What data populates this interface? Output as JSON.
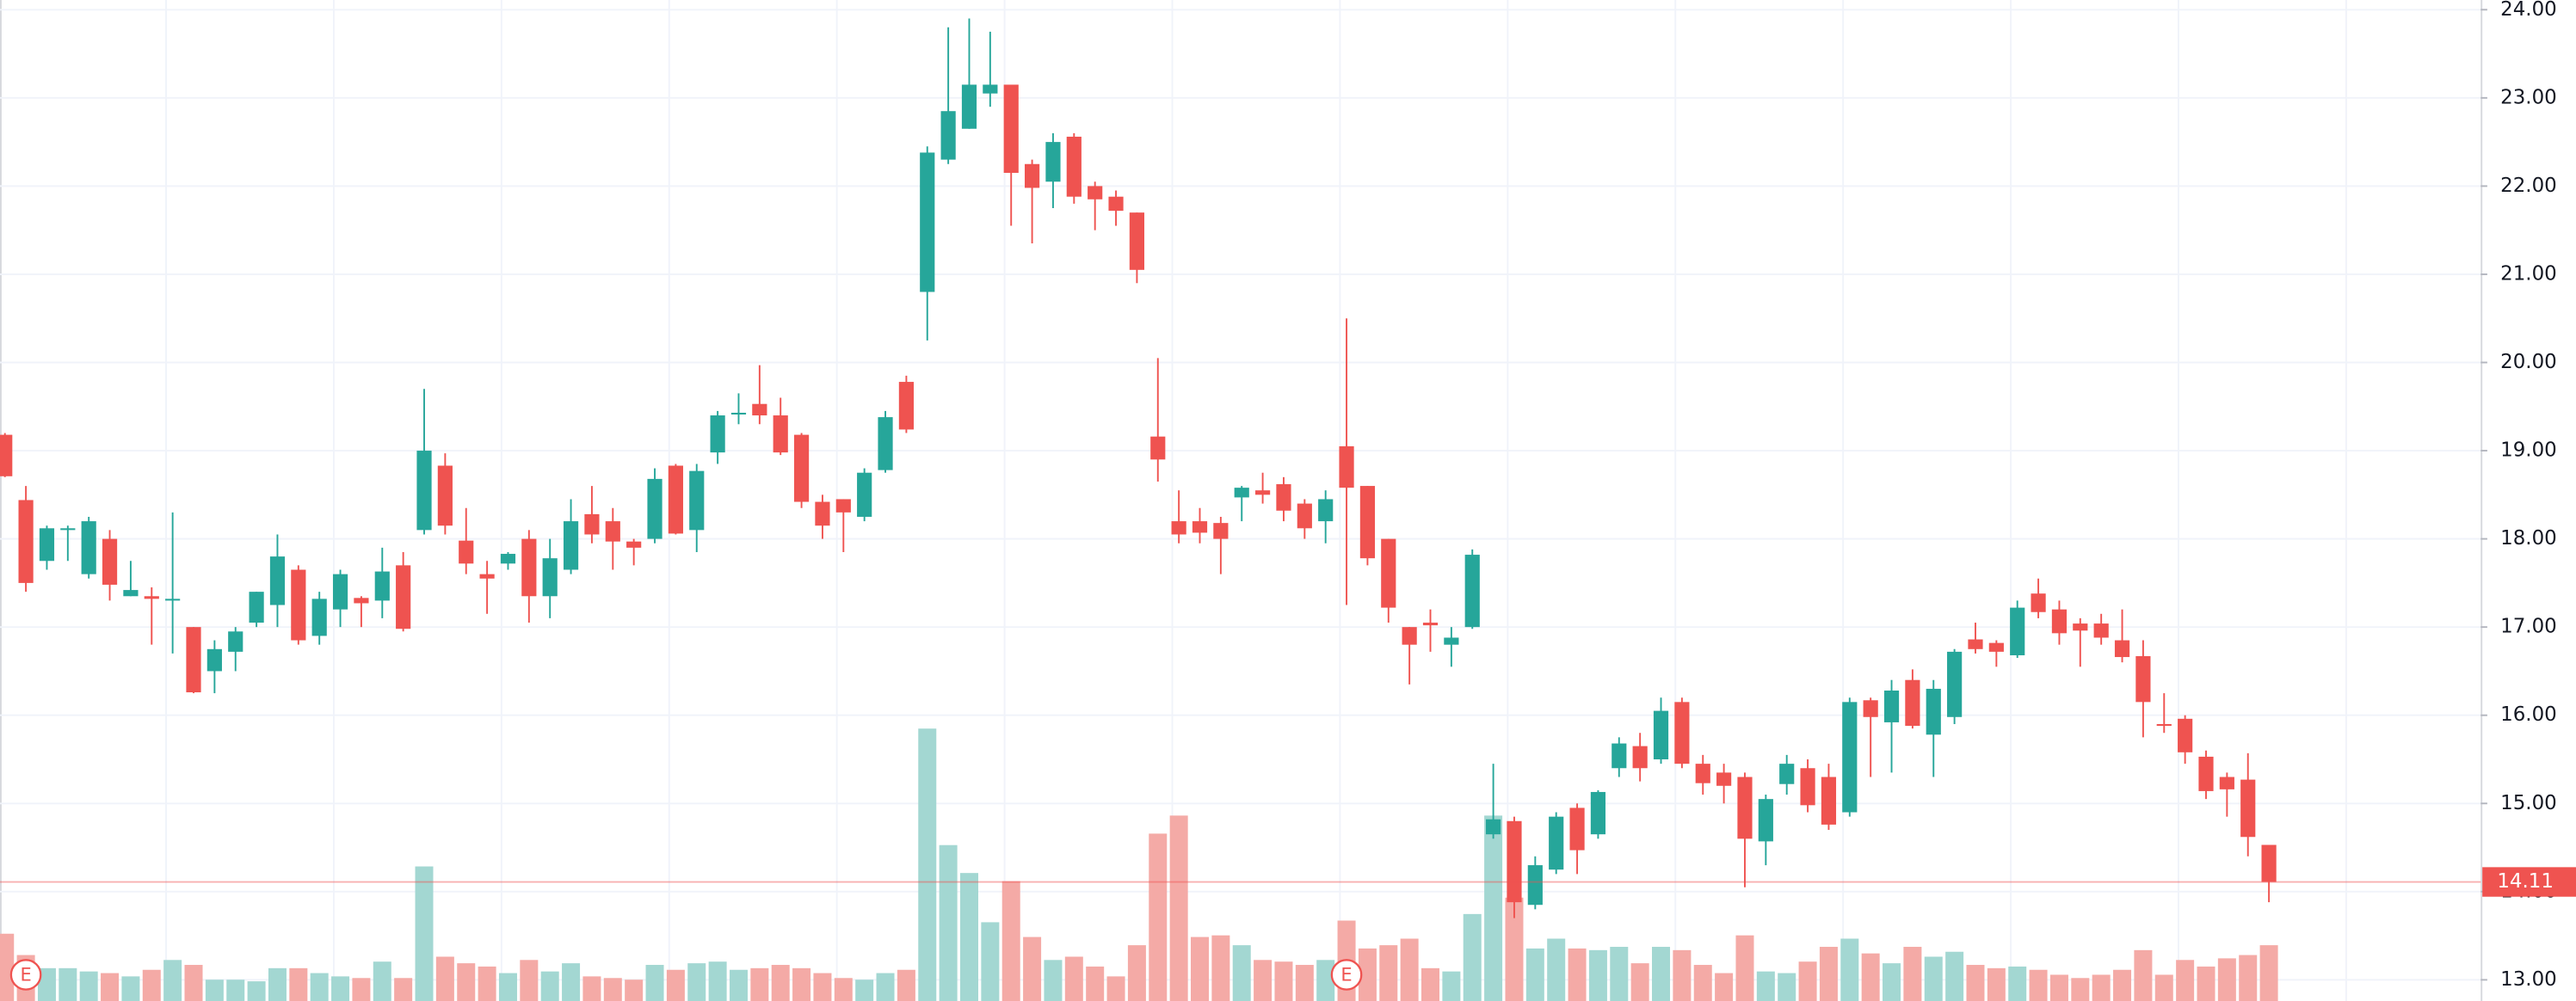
{
  "chart_data": {
    "type": "candlestick",
    "open": [
      19.18,
      18.44,
      17.75,
      18.1,
      17.6,
      18.0,
      17.35,
      17.35,
      17.3,
      17.0,
      16.5,
      16.72,
      17.05,
      17.25,
      17.65,
      16.9,
      17.2,
      17.33,
      17.3,
      17.7,
      18.1,
      18.83,
      17.98,
      17.6,
      17.72,
      18.0,
      17.35,
      17.65,
      18.28,
      18.2,
      17.97,
      18.0,
      18.83,
      18.1,
      18.98,
      19.41,
      19.53,
      19.4,
      19.18,
      18.42,
      18.45,
      18.25,
      18.78,
      19.78,
      20.8,
      22.3,
      22.65,
      23.05,
      23.15,
      22.25,
      22.05,
      22.56,
      22.0,
      21.88,
      21.7,
      19.16,
      18.2,
      18.2,
      18.18,
      18.47,
      18.55,
      18.62,
      18.4,
      18.2,
      19.05,
      18.6,
      18.0,
      17.0,
      17.05,
      16.8,
      17.0,
      14.65,
      14.8,
      13.85,
      14.25,
      14.95,
      14.65,
      15.4,
      15.65,
      15.5,
      16.15,
      15.45,
      15.35,
      15.3,
      14.57,
      15.22,
      15.4,
      15.3,
      14.9,
      16.17,
      15.92,
      16.4,
      15.78,
      15.98,
      16.86,
      16.82,
      16.68,
      17.38,
      17.2,
      17.04,
      17.04,
      16.85,
      16.67,
      15.9,
      15.96,
      15.53,
      15.3,
      15.27,
      14.53
    ],
    "high": [
      19.2,
      18.6,
      18.15,
      18.15,
      18.25,
      18.1,
      17.75,
      17.45,
      18.3,
      17.0,
      16.85,
      17.0,
      17.4,
      18.05,
      17.7,
      17.4,
      17.65,
      17.35,
      17.9,
      17.85,
      19.7,
      18.97,
      18.35,
      17.75,
      17.85,
      18.1,
      18.0,
      18.45,
      18.6,
      18.35,
      18.0,
      18.8,
      18.85,
      18.85,
      19.45,
      19.65,
      19.97,
      19.6,
      19.2,
      18.5,
      18.45,
      18.8,
      19.45,
      19.85,
      22.45,
      23.8,
      23.9,
      23.75,
      23.15,
      22.3,
      22.6,
      22.6,
      22.05,
      21.95,
      21.7,
      20.05,
      18.55,
      18.35,
      18.25,
      18.6,
      18.75,
      18.7,
      18.45,
      18.55,
      20.5,
      18.6,
      18.0,
      17.0,
      17.2,
      17.0,
      17.88,
      15.45,
      14.85,
      14.4,
      14.9,
      15.0,
      15.15,
      15.75,
      15.8,
      16.2,
      16.2,
      15.55,
      15.45,
      15.35,
      15.1,
      15.55,
      15.5,
      15.45,
      16.2,
      16.2,
      16.4,
      16.52,
      16.4,
      16.75,
      17.05,
      16.85,
      17.3,
      17.55,
      17.3,
      17.1,
      17.15,
      17.2,
      16.85,
      16.25,
      16.0,
      15.6,
      15.35,
      15.57,
      14.53
    ],
    "low": [
      18.7,
      17.4,
      17.65,
      17.75,
      17.55,
      17.3,
      17.35,
      16.8,
      16.7,
      16.25,
      16.25,
      16.5,
      17.0,
      17.0,
      16.8,
      16.8,
      17.0,
      17.0,
      17.1,
      16.95,
      18.05,
      18.05,
      17.6,
      17.15,
      17.65,
      17.05,
      17.1,
      17.6,
      17.95,
      17.65,
      17.7,
      17.95,
      18.05,
      17.85,
      18.85,
      19.3,
      19.3,
      18.95,
      18.35,
      18.0,
      17.85,
      18.2,
      18.75,
      19.2,
      20.25,
      22.25,
      22.65,
      22.9,
      21.55,
      21.35,
      21.75,
      21.8,
      21.5,
      21.55,
      20.9,
      18.65,
      17.95,
      17.95,
      17.6,
      18.2,
      18.4,
      18.2,
      18.0,
      17.95,
      17.25,
      17.7,
      17.05,
      16.35,
      16.72,
      16.55,
      16.98,
      14.6,
      13.7,
      13.8,
      14.2,
      14.2,
      14.6,
      15.3,
      15.25,
      15.45,
      15.4,
      15.1,
      15.0,
      14.05,
      14.3,
      15.1,
      14.9,
      14.7,
      14.85,
      15.3,
      15.35,
      15.85,
      15.3,
      15.9,
      16.7,
      16.55,
      16.65,
      17.1,
      16.8,
      16.55,
      16.8,
      16.6,
      15.75,
      15.8,
      15.45,
      15.05,
      14.85,
      14.4,
      13.88
    ],
    "close": [
      18.71,
      17.5,
      18.12,
      18.12,
      18.2,
      17.48,
      17.42,
      17.32,
      17.32,
      16.26,
      16.75,
      16.95,
      17.4,
      17.8,
      16.85,
      17.32,
      17.6,
      17.27,
      17.63,
      16.98,
      19.0,
      18.15,
      17.72,
      17.55,
      17.83,
      17.35,
      17.78,
      18.2,
      18.05,
      17.97,
      17.9,
      18.68,
      18.06,
      18.77,
      19.4,
      19.43,
      19.4,
      18.98,
      18.42,
      18.15,
      18.3,
      18.75,
      19.38,
      19.24,
      22.38,
      22.85,
      23.15,
      23.15,
      22.15,
      21.98,
      22.5,
      21.88,
      21.85,
      21.72,
      21.05,
      18.9,
      18.05,
      18.07,
      18.0,
      18.58,
      18.5,
      18.32,
      18.12,
      18.45,
      18.58,
      17.78,
      17.22,
      16.8,
      17.02,
      16.88,
      17.82,
      14.82,
      13.88,
      14.3,
      14.85,
      14.47,
      15.13,
      15.68,
      15.4,
      16.05,
      15.45,
      15.23,
      15.2,
      14.6,
      15.05,
      15.45,
      14.98,
      14.76,
      16.15,
      15.98,
      16.28,
      15.88,
      16.3,
      16.72,
      16.75,
      16.72,
      17.22,
      17.17,
      16.93,
      16.96,
      16.88,
      16.66,
      16.15,
      15.88,
      15.58,
      15.14,
      15.16,
      14.62,
      14.11
    ],
    "volume": [
      41,
      28,
      20,
      20,
      18,
      17,
      15,
      19,
      25,
      22,
      13,
      13,
      12,
      20,
      20,
      17,
      15,
      14,
      24,
      14,
      82,
      27,
      23,
      21,
      17,
      25,
      18,
      23,
      15,
      14,
      13,
      22,
      19,
      23,
      24,
      19,
      20,
      22,
      20,
      17,
      14,
      13,
      17,
      19,
      166,
      95,
      78,
      48,
      73,
      39,
      25,
      27,
      21,
      15,
      34,
      102,
      113,
      39,
      40,
      34,
      25,
      24,
      22,
      25,
      49,
      32,
      34,
      38,
      20,
      18,
      53,
      113,
      63,
      32,
      38,
      32,
      31,
      33,
      23,
      33,
      31,
      22,
      17,
      40,
      18,
      17,
      24,
      33,
      38,
      29,
      23,
      33,
      27,
      30,
      22,
      20,
      21,
      19,
      16,
      14,
      16,
      19,
      31,
      16,
      25,
      21,
      26,
      28,
      34
    ],
    "up_color": "#26a69a",
    "down_color": "#ef5350",
    "volume_up_color": "#a3d7d2",
    "volume_down_color": "#f4aaa6",
    "ylim": [
      12.76,
      24.11
    ],
    "yticks": [
      {
        "value": 13,
        "label": "13.00"
      },
      {
        "value": 14,
        "label": "14.00"
      },
      {
        "value": 15,
        "label": "15.00"
      },
      {
        "value": 16,
        "label": "16.00"
      },
      {
        "value": 17,
        "label": "17.00"
      },
      {
        "value": 18,
        "label": "18.00"
      },
      {
        "value": 19,
        "label": "19.00"
      },
      {
        "value": 20,
        "label": "20.00"
      },
      {
        "value": 21,
        "label": "21.00"
      },
      {
        "value": 22,
        "label": "22.00"
      },
      {
        "value": 23,
        "label": "23.00"
      },
      {
        "value": 24,
        "label": "24.00"
      }
    ],
    "grid": true,
    "events": [
      {
        "index": 1,
        "label": "E"
      },
      {
        "index": 64,
        "label": "E"
      }
    ]
  }
}
